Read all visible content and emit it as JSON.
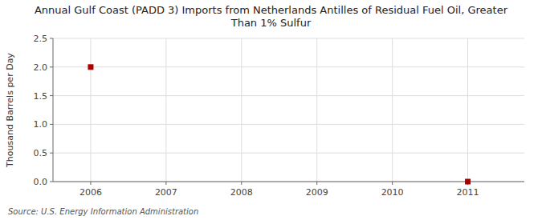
{
  "chart_data": {
    "type": "scatter",
    "title": "Annual Gulf Coast (PADD 3) Imports from Netherlands Antilles of Residual Fuel Oil, Greater\nThan 1% Sulfur",
    "ylabel": "Thousand Barrels per Day",
    "source": "Source: U.S. Energy Information Administration",
    "x": [
      2006,
      2011
    ],
    "values": [
      2.0,
      0.0
    ],
    "color": "#aa0000",
    "marker": "square",
    "xlim": [
      2005.5,
      2011.75
    ],
    "ylim": [
      0.0,
      2.5
    ],
    "xticks": [
      2006,
      2007,
      2008,
      2009,
      2010,
      2011
    ],
    "yticks": [
      {
        "value": 0.0,
        "label": "0.0"
      },
      0.5,
      {
        "value": 1.0,
        "label": "1.0"
      },
      1.5,
      {
        "value": 2.0,
        "label": "2.0"
      },
      2.5
    ],
    "grid": true
  }
}
